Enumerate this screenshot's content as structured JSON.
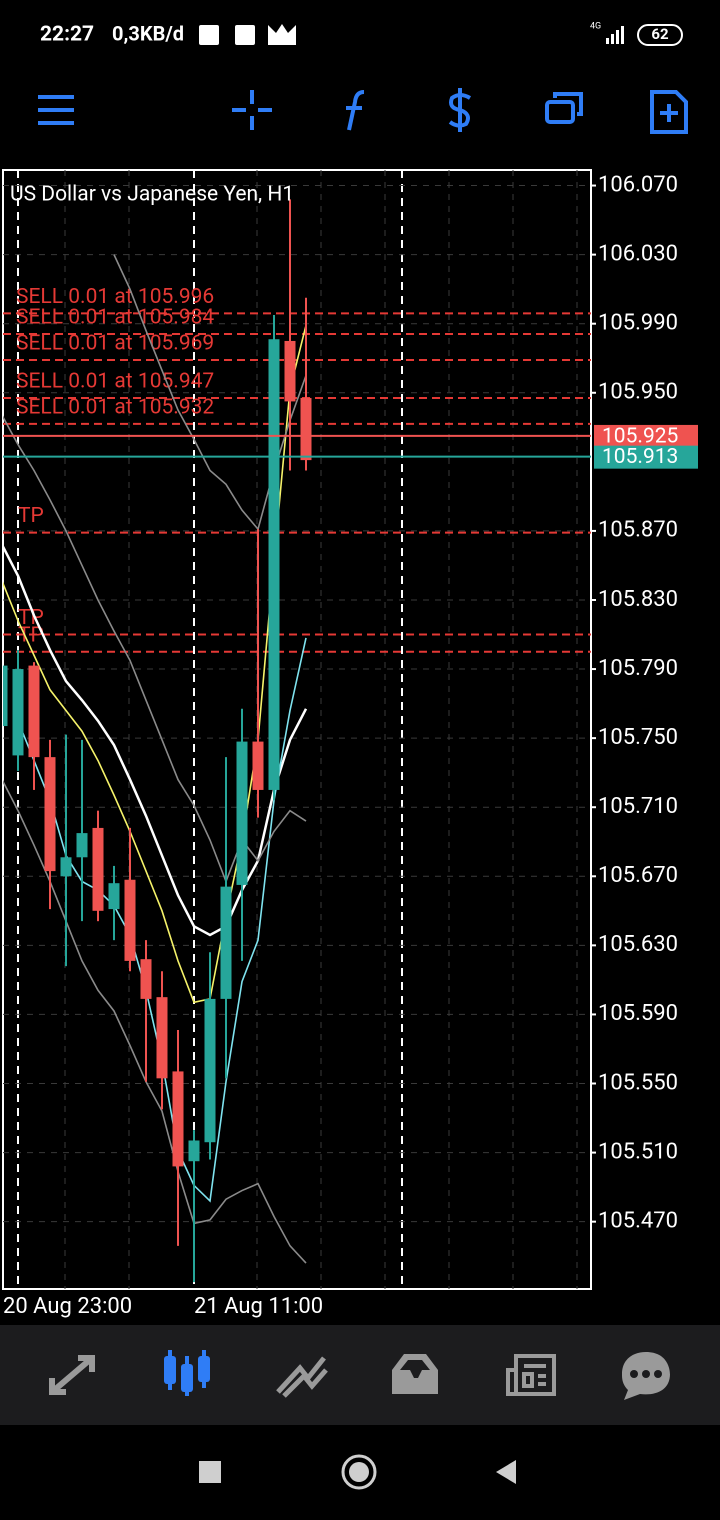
{
  "status": {
    "time": "22:27",
    "speed": "0,3KB/d",
    "network": "4G",
    "battery": "62"
  },
  "chart_data": {
    "type": "candlestick",
    "title": "US Dollar vs Japanese Yen, H1",
    "categories": [
      "20 Aug 23:00",
      null,
      null,
      null,
      null,
      null,
      null,
      null,
      null,
      null,
      null,
      null,
      "21 Aug 11:00",
      null,
      null,
      null,
      null,
      null,
      null,
      null
    ],
    "open": [
      105.757,
      105.74,
      105.792,
      105.739,
      105.67,
      105.681,
      105.698,
      105.651,
      105.668,
      105.622,
      105.6,
      105.557,
      105.505,
      105.516,
      105.599,
      105.665,
      105.748,
      105.72,
      105.98,
      105.947
    ],
    "high": [
      105.795,
      105.801,
      105.794,
      105.749,
      105.752,
      105.749,
      105.708,
      105.676,
      105.698,
      105.633,
      105.615,
      105.581,
      105.523,
      105.626,
      105.739,
      105.767,
      105.871,
      105.995,
      106.062,
      106.005
    ],
    "low": [
      105.75,
      105.731,
      105.72,
      105.651,
      105.618,
      105.644,
      105.644,
      105.633,
      105.615,
      105.551,
      105.535,
      105.456,
      105.435,
      105.506,
      105.553,
      105.621,
      105.704,
      105.714,
      105.905,
      105.905
    ],
    "close": [
      105.792,
      105.79,
      105.739,
      105.673,
      105.681,
      105.695,
      105.65,
      105.666,
      105.621,
      105.599,
      105.553,
      105.502,
      105.517,
      105.599,
      105.664,
      105.748,
      105.72,
      105.981,
      105.945,
      105.911
    ],
    "up_color": "#26a69a",
    "down_color": "#ef5350",
    "overlays": [
      {
        "color": "#ffffff",
        "values": [
          105.862,
          105.844,
          105.821,
          105.801,
          105.783,
          105.772,
          105.76,
          105.746,
          105.726,
          105.705,
          105.682,
          105.659,
          105.641,
          105.636,
          105.641,
          105.662,
          105.679,
          105.72,
          105.749,
          105.767
        ]
      },
      {
        "color": "#f5f26a",
        "values": [
          105.841,
          105.818,
          105.798,
          105.778,
          105.766,
          105.754,
          105.737,
          105.717,
          105.696,
          105.673,
          105.65,
          105.621,
          105.597,
          105.599,
          105.647,
          105.691,
          105.749,
          105.853,
          105.952,
          105.989
        ]
      },
      {
        "color": "#7fe3ef",
        "values": [
          null,
          105.76,
          105.737,
          105.714,
          105.682,
          105.667,
          105.662,
          105.653,
          105.636,
          105.604,
          105.563,
          105.511,
          105.491,
          105.482,
          105.551,
          105.609,
          105.633,
          105.714,
          105.766,
          105.808
        ]
      },
      {
        "color": "#8a8a8a",
        "values": [
          null,
          null,
          null,
          null,
          null,
          null,
          null,
          106.03,
          106.01,
          105.986,
          105.963,
          105.94,
          105.923,
          105.905,
          105.897,
          105.882,
          105.871,
          105.905,
          105.934,
          105.96
        ]
      },
      {
        "color": "#8a8a8a",
        "values": [
          105.937,
          105.92,
          105.905,
          105.888,
          105.87,
          105.85,
          105.83,
          105.812,
          105.795,
          105.772,
          105.749,
          105.726,
          105.711,
          105.691,
          105.667,
          105.691,
          105.679,
          105.696,
          105.708,
          105.702
        ]
      },
      {
        "color": "#8a8a8a",
        "values": [
          105.726,
          105.708,
          105.688,
          105.667,
          105.644,
          105.621,
          105.604,
          105.592,
          105.572,
          105.551,
          105.534,
          105.499,
          105.469,
          105.471,
          105.483,
          105.488,
          105.492,
          105.473,
          105.456,
          105.446
        ]
      }
    ],
    "orders": [
      {
        "label": "SELL 0.01 at 105.996",
        "value": 105.996
      },
      {
        "label": "SELL 0.01 at 105.984",
        "value": 105.984
      },
      {
        "label": "SELL 0.01 at 105.969",
        "value": 105.969
      },
      {
        "label": "SELL 0.01 at 105.947",
        "value": 105.947
      },
      {
        "label": "SELL 0.01 at 105.932",
        "value": 105.932
      }
    ],
    "tp_levels": [
      {
        "label": "TP",
        "value": 105.869
      },
      {
        "label": "TP",
        "value": 105.81
      },
      {
        "label": "TP",
        "value": 105.8
      }
    ],
    "bid": 105.925,
    "bid_color": "#ef5350",
    "ask": 105.913,
    "ask_color": "#26a69a",
    "ylim": [
      105.431,
      106.079
    ],
    "yticks": [
      {
        "value": 106.07,
        "label": "106.070"
      },
      {
        "value": 106.03,
        "label": "106.030"
      },
      {
        "value": 105.99,
        "label": "105.990"
      },
      {
        "value": 105.95,
        "label": "105.950"
      },
      {
        "value": 105.87,
        "label": "105.870"
      },
      {
        "value": 105.83,
        "label": "105.830"
      },
      {
        "value": 105.79,
        "label": "105.790"
      },
      {
        "value": 105.75,
        "label": "105.750"
      },
      {
        "value": 105.71,
        "label": "105.710"
      },
      {
        "value": 105.67,
        "label": "105.670"
      },
      {
        "value": 105.63,
        "label": "105.630"
      },
      {
        "value": 105.59,
        "label": "105.590"
      },
      {
        "value": 105.55,
        "label": "105.550"
      },
      {
        "value": 105.51,
        "label": "105.510"
      },
      {
        "value": 105.47,
        "label": "105.470"
      }
    ],
    "grid": true
  }
}
